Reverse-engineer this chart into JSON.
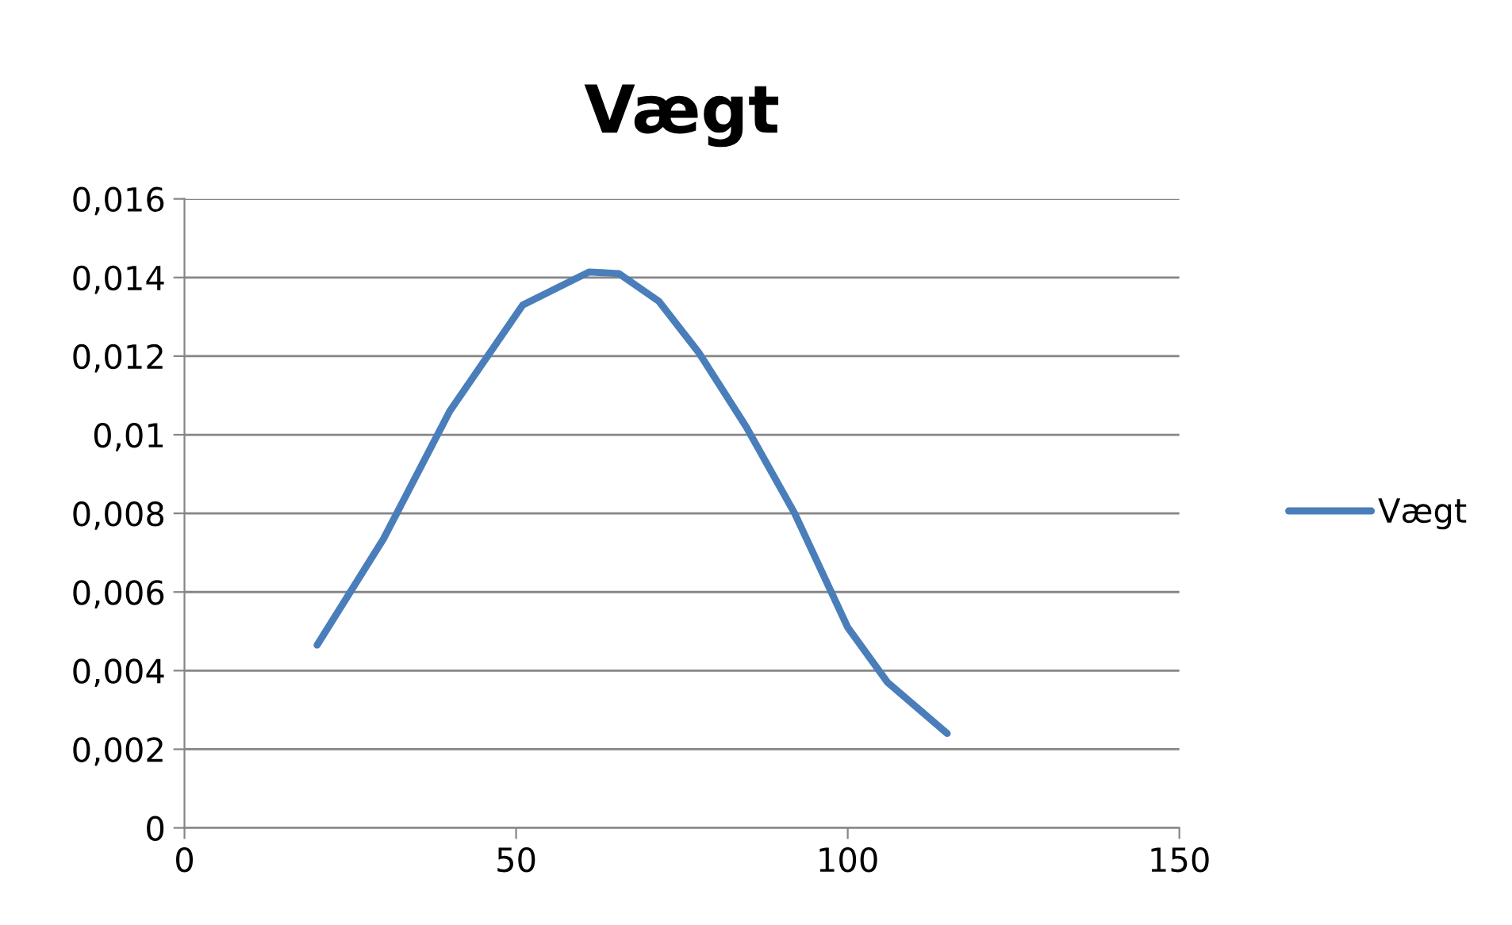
{
  "chart_data": {
    "type": "line",
    "title": "Vægt",
    "x": [
      20,
      30,
      40,
      51,
      61,
      65.5,
      71.5,
      77.5,
      84.7,
      92,
      100,
      106,
      115
    ],
    "series": [
      {
        "name": "Vægt",
        "color": "#4a7ebb",
        "values": [
          0.00465,
          0.00735,
          0.0106,
          0.0133,
          0.01414,
          0.0141,
          0.0134,
          0.0121,
          0.0102,
          0.008,
          0.0051,
          0.0037,
          0.0024
        ]
      }
    ],
    "xlim": [
      0,
      150
    ],
    "xticks": [
      0,
      50,
      100,
      150
    ],
    "ylim": [
      0,
      0.016
    ],
    "yticks": [
      0,
      {
        "value": 0.002,
        "label": "0,002"
      },
      {
        "value": 0.004,
        "label": "0,004"
      },
      {
        "value": 0.006,
        "label": "0,006"
      },
      {
        "value": 0.008,
        "label": "0,008"
      },
      {
        "value": 0.01,
        "label": "0,01"
      },
      {
        "value": 0.012,
        "label": "0,012"
      },
      {
        "value": 0.014,
        "label": "0,014"
      },
      {
        "value": 0.016,
        "label": "0,016"
      }
    ],
    "grid": "y",
    "legend": "right",
    "marker": "none",
    "line_style": "solid"
  }
}
